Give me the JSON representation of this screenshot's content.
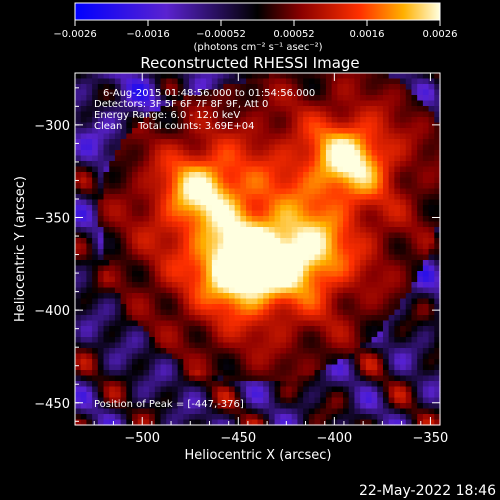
{
  "chart_data": {
    "type": "heatmap",
    "title": "Reconstructed RHESSI Image",
    "xlabel": "Heliocentric X (arcsec)",
    "ylabel": "Heliocentric Y (arcsec)",
    "xlim": [
      -535,
      -345
    ],
    "ylim": [
      -462,
      -272
    ],
    "xticks": [
      -500,
      -450,
      -400,
      -350
    ],
    "yticks": [
      -300,
      -350,
      -400,
      -450
    ],
    "colorbar": {
      "range": [
        -0.0026,
        0.0026
      ],
      "ticks": [
        "-0.0026",
        "-0.0016",
        "-0.00052",
        "0.00052",
        "0.0016",
        "0.0026"
      ],
      "label": "(photons cm⁻² s⁻¹ asec⁻²)",
      "colormap": "rainbow-heat",
      "stops": [
        "#0000ff",
        "#5a22d0",
        "#000000",
        "#8b0000",
        "#ff3000",
        "#ffb000",
        "#ffffe0"
      ]
    },
    "annotations": [
      "6-Aug-2015 01:48:56.000 to 01:54:56.000",
      "Detectors: 3F 5F 6F 7F 8F 9F, Att 0",
      "Energy Range: 6.0 - 12.0 keV",
      "Clean     Total counts: 3.69E+04"
    ],
    "peak_label": "Position of Peak = [-447,-376]",
    "peak": [
      -447,
      -376
    ],
    "sources": [
      {
        "x": -447,
        "y": -376,
        "intensity": 1.0
      },
      {
        "x": -392,
        "y": -318,
        "intensity": 0.72
      },
      {
        "x": -470,
        "y": -335,
        "intensity": 0.6
      },
      {
        "x": -415,
        "y": -370,
        "intensity": 0.55
      }
    ]
  },
  "footer": {
    "timestamp": "22-May-2022 18:46"
  }
}
